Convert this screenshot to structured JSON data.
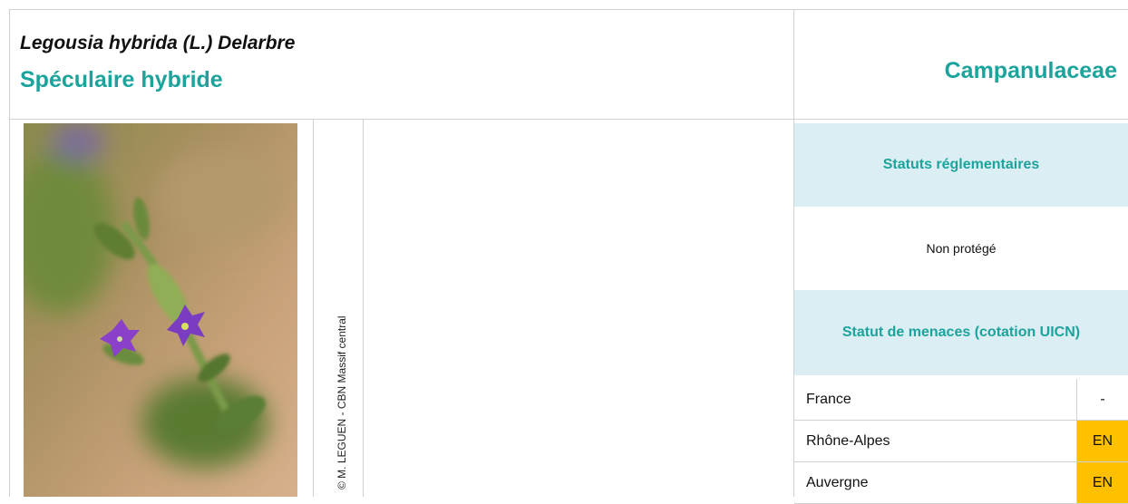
{
  "header": {
    "latin_name": "Legousia hybrida (L.) Delarbre",
    "common_name": "Spéculaire hybride",
    "family": "Campanulaceae"
  },
  "photo": {
    "credit": "© M. LEGUEN - CBN Massif central"
  },
  "status": {
    "regulatory": {
      "title": "Statuts réglementaires",
      "value": "Non protégé"
    },
    "threat": {
      "title": "Statut de menaces (cotation UICN)",
      "rows": [
        [
          "France",
          "-"
        ],
        [
          "Rhône-Alpes",
          "EN"
        ],
        [
          "Auvergne",
          "EN"
        ]
      ]
    }
  }
}
